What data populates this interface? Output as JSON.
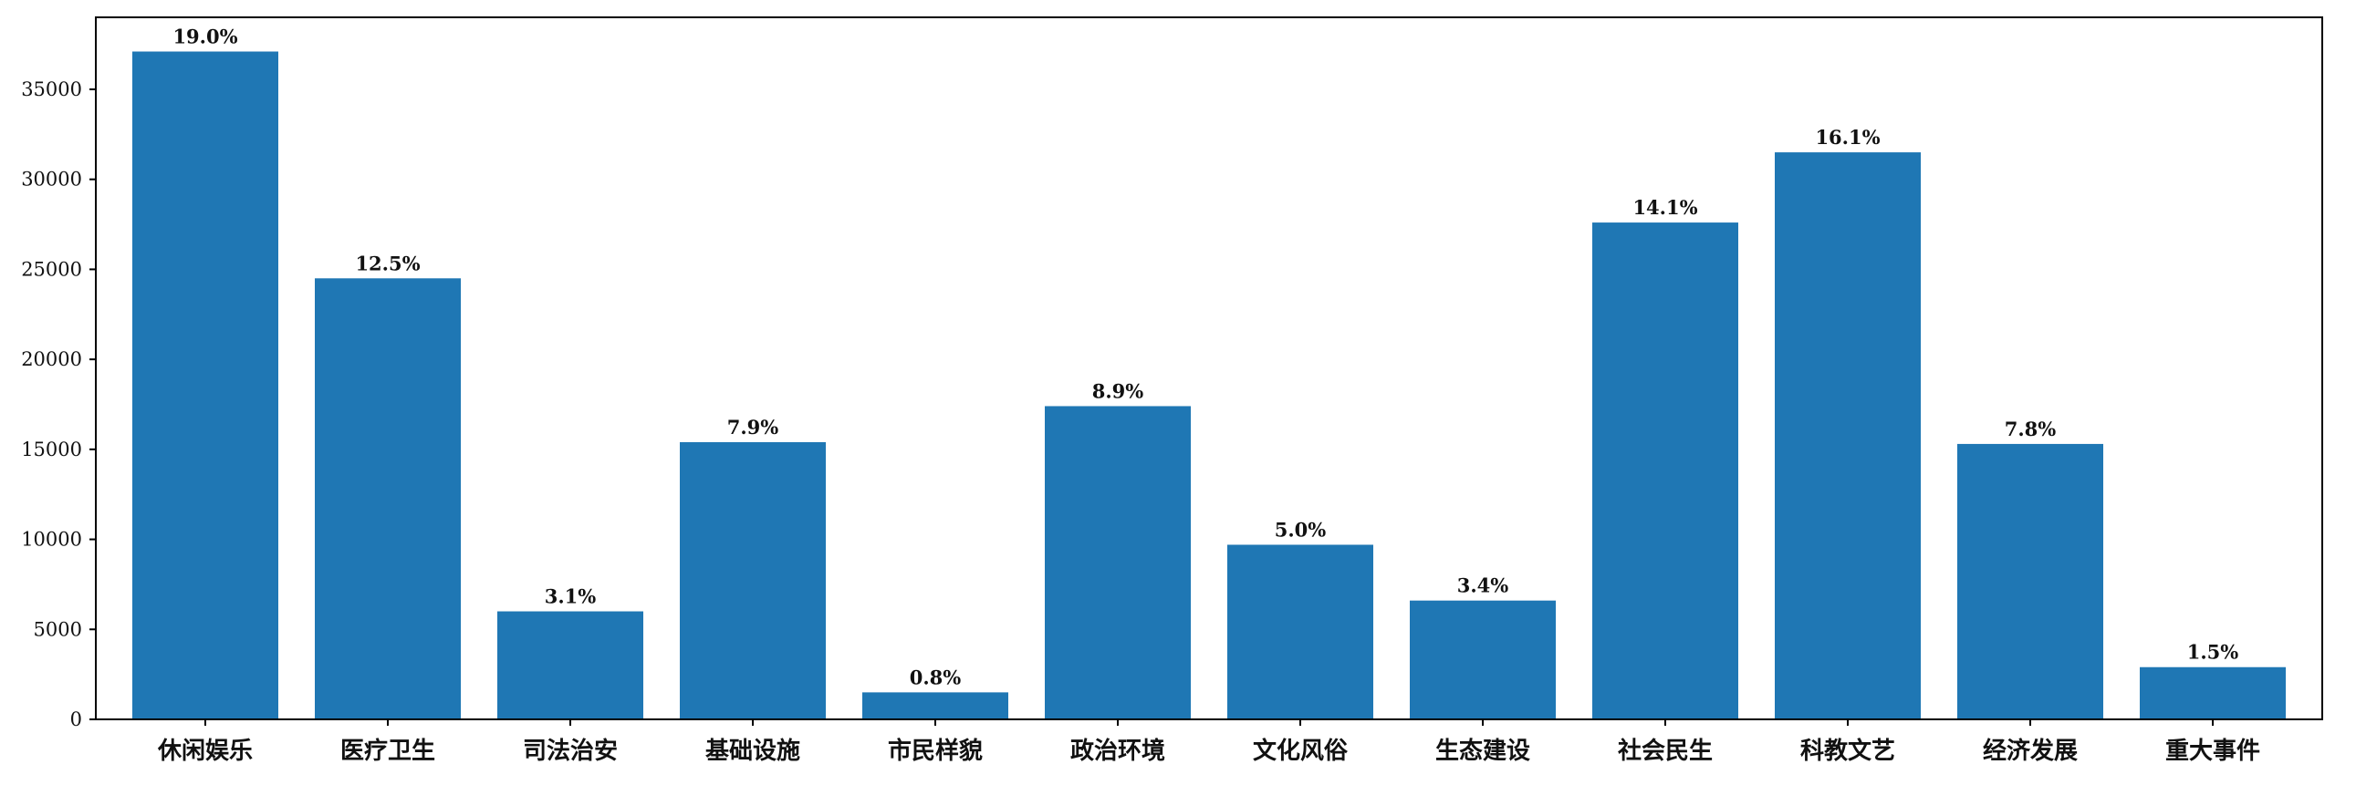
{
  "chart_data": {
    "type": "bar",
    "categories": [
      "休闲娱乐",
      "医疗卫生",
      "司法治安",
      "基础设施",
      "市民样貌",
      "政治环境",
      "文化风俗",
      "生态建设",
      "社会民生",
      "科教文艺",
      "经济发展",
      "重大事件"
    ],
    "values": [
      37100,
      24500,
      6000,
      15400,
      1500,
      17400,
      9700,
      6600,
      27600,
      31500,
      15300,
      2900
    ],
    "data_labels": [
      "19.0%",
      "12.5%",
      "3.1%",
      "7.9%",
      "0.8%",
      "8.9%",
      "5.0%",
      "3.4%",
      "14.1%",
      "16.1%",
      "7.8%",
      "1.5%"
    ],
    "y_ticks": [
      0,
      5000,
      10000,
      15000,
      20000,
      25000,
      30000,
      35000
    ],
    "ylim": [
      0,
      39000
    ],
    "bar_color": "#1f77b4",
    "grid": false,
    "title": "",
    "xlabel": "",
    "ylabel": ""
  }
}
